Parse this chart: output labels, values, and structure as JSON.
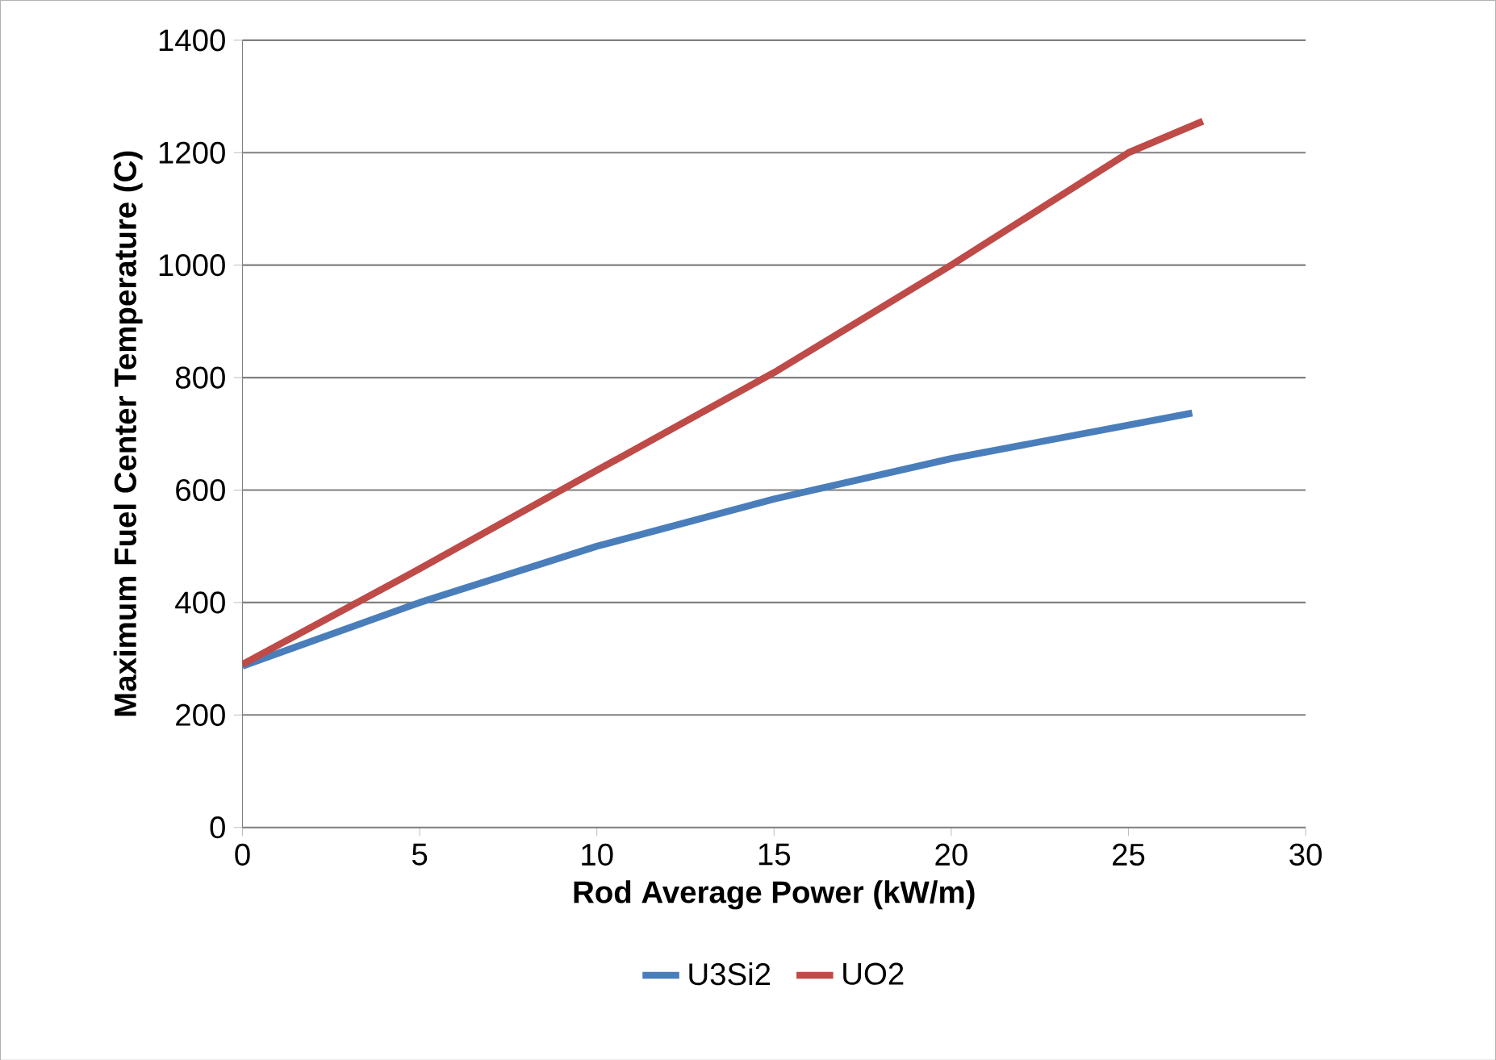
{
  "chart_data": {
    "type": "line",
    "xlabel": "Rod Average Power (kW/m)",
    "ylabel": "Maximum Fuel Center Temperature (C)",
    "xlim": [
      0,
      30
    ],
    "xticks": [
      0,
      5,
      10,
      15,
      20,
      25,
      30
    ],
    "ylim": [
      0,
      1400
    ],
    "yticks": [
      0,
      200,
      400,
      600,
      800,
      1000,
      1200,
      1400
    ],
    "grid": "y",
    "legend": "bottom",
    "marker": "none",
    "line_style": "solid",
    "series": [
      {
        "name": "U3Si2",
        "color": "#4a7ebb",
        "x": [
          0,
          5,
          10,
          15,
          20,
          26.8
        ],
        "values": [
          287,
          400,
          500,
          584,
          656,
          737
        ]
      },
      {
        "name": "UO2",
        "color": "#be4b48",
        "x": [
          0,
          5,
          10,
          15,
          20,
          25,
          27.1
        ],
        "values": [
          290,
          460,
          635,
          809,
          1000,
          1200,
          1256
        ]
      }
    ]
  }
}
